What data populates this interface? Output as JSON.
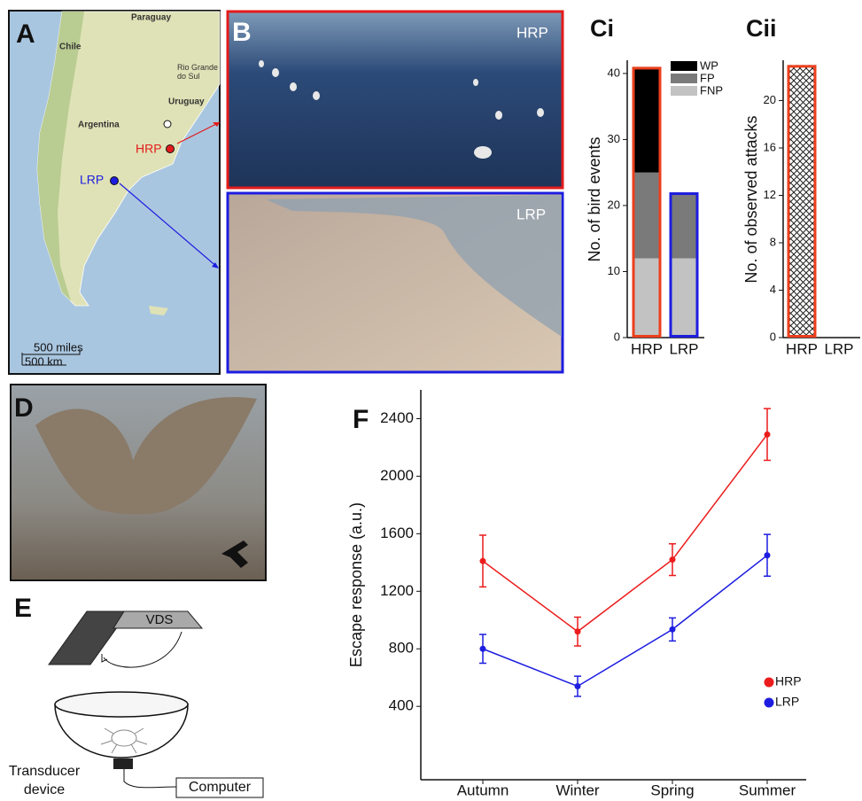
{
  "panel_labels": [
    "A",
    "B",
    "D",
    "E",
    "F"
  ],
  "map": {
    "countries": [
      "Paraguay",
      "Chile",
      "Rio Grande\ndo Sul",
      "Uruguay",
      "Argentina"
    ],
    "sites": [
      "HRP",
      "LRP"
    ],
    "scale": [
      "500 miles",
      "500 km"
    ]
  },
  "photos": [
    "HRP",
    "LRP"
  ],
  "diagram": {
    "device": "VDS",
    "transducer": "Transducer\ndevice",
    "computer": "Computer"
  },
  "chart_data": [
    {
      "type": "bar",
      "stacked": true,
      "title": "Ci",
      "y_label": "No. of bird events",
      "categories": [
        "HRP",
        "LRP"
      ],
      "edge_colors": [
        "#ec3f1c",
        "#1d1de0"
      ],
      "series": [
        {
          "name": "WP",
          "color": "#000000",
          "values": [
            16,
            0
          ]
        },
        {
          "name": "FP",
          "color": "#7a7a7a",
          "values": [
            13,
            10
          ]
        },
        {
          "name": "FNP",
          "color": "#c2c2c2",
          "values": [
            12,
            12
          ]
        }
      ],
      "ylim": [
        0,
        42
      ],
      "yticks": [
        0,
        10,
        20,
        30,
        40
      ]
    },
    {
      "type": "bar",
      "hatch": true,
      "title": "Cii",
      "y_label": "No. of observed attacks",
      "categories": [
        "HRP",
        "LRP"
      ],
      "edge_colors": [
        "#ec3f1c",
        "#1d1de0"
      ],
      "values": [
        23,
        0
      ],
      "ylim": [
        0,
        23.4
      ],
      "yticks": [
        0,
        4,
        8,
        12,
        16,
        20
      ]
    },
    {
      "type": "line",
      "y_label": "Escape response (a.u.)",
      "categories": [
        "Autumn",
        "Winter",
        "Spring",
        "Summer"
      ],
      "series": [
        {
          "name": "HRP",
          "color": "#ec1c1c",
          "values": [
            1410,
            920,
            1420,
            2290
          ],
          "errors": [
            180,
            100,
            110,
            180
          ]
        },
        {
          "name": "LRP",
          "color": "#1d1de0",
          "values": [
            800,
            540,
            935,
            1450
          ],
          "errors": [
            100,
            70,
            80,
            145
          ]
        }
      ],
      "ylim": [
        -110,
        2600
      ],
      "yticks": [
        400,
        800,
        1200,
        1600,
        2000,
        2400
      ],
      "legend": "lower right"
    }
  ]
}
